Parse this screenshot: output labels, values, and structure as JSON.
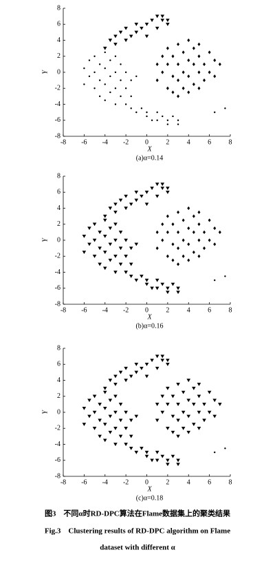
{
  "chart_data": [
    {
      "type": "scatter",
      "caption": "(a)α=0.14",
      "xlabel": "X",
      "ylabel": "Y",
      "xlim": [
        -8,
        8
      ],
      "xticks": [
        -8,
        -6,
        -4,
        -2,
        0,
        2,
        4,
        6,
        8
      ],
      "ylim": [
        -8,
        8
      ],
      "yticks": [
        -8,
        -6,
        -4,
        -2,
        0,
        2,
        4,
        6,
        8
      ],
      "series": [
        {
          "marker": "dot",
          "color": "#000000",
          "x": [
            -6,
            -6,
            -5.5,
            -5.5,
            -5,
            -5,
            -5,
            -4.5,
            -4.5,
            -4.5,
            -4,
            -4,
            -4,
            -4,
            -3.5,
            -3.5,
            -3.5,
            -3,
            -3,
            -3,
            -3,
            -2.5,
            -2.5,
            -2.5,
            -2,
            -2,
            -2,
            -1.5,
            -1.5,
            -1
          ],
          "y": [
            0.5,
            -1.5,
            1.5,
            -0.5,
            2,
            0,
            -2,
            1,
            -1,
            -3,
            2.5,
            0.5,
            -1.5,
            -3.5,
            1.5,
            -0.5,
            -2.5,
            2,
            0,
            -2,
            -4,
            1,
            -1,
            -3,
            0,
            -2,
            -4,
            -1,
            -3,
            -0.5
          ]
        },
        {
          "marker": "triangle",
          "color": "#000000",
          "x": [
            -4,
            -3.5,
            -3,
            -3,
            -2.5,
            -2,
            -2,
            -1.5,
            -1,
            -1,
            -0.5,
            0,
            0,
            0.5,
            1,
            1,
            1.5,
            1.5,
            2,
            2
          ],
          "y": [
            3,
            4,
            3.5,
            4.5,
            5,
            4,
            5.5,
            4.5,
            5,
            6,
            5.5,
            6,
            4.5,
            6.5,
            7,
            5.5,
            6.5,
            7,
            6,
            6.5
          ]
        },
        {
          "marker": "dot",
          "color": "#000000",
          "x": [
            -1.5,
            -1,
            -0.5,
            0,
            0,
            0.5,
            1,
            1,
            1.5,
            2,
            2,
            2.5,
            3,
            3
          ],
          "y": [
            -4.5,
            -5,
            -4.5,
            -5,
            -5.5,
            -6,
            -5,
            -6,
            -5.5,
            -6,
            -6.5,
            -5.5,
            -6.5,
            -6
          ]
        },
        {
          "marker": "diamond",
          "color": "#000000",
          "x": [
            1,
            1,
            1.5,
            1.5,
            2,
            2,
            2,
            2.5,
            2.5,
            2.5,
            3,
            3,
            3,
            3,
            3.5,
            3.5,
            3.5,
            4,
            4,
            4,
            4,
            4.5,
            4.5,
            4.5,
            5,
            5,
            5,
            5,
            5.5,
            5.5,
            6,
            6,
            6.5,
            6.5,
            7
          ],
          "y": [
            1,
            -1,
            2,
            0,
            3,
            1,
            -2,
            2,
            -0.5,
            -2.5,
            3.5,
            1,
            -1,
            -3,
            2.5,
            0,
            -2,
            4,
            1.5,
            -0.5,
            -2.5,
            3,
            1,
            -1.5,
            3.5,
            2,
            0,
            -2,
            1,
            -1,
            2.5,
            0,
            1.5,
            -0.5,
            1
          ]
        },
        {
          "marker": "dot",
          "color": "#000000",
          "x": [
            6.5,
            7.5
          ],
          "y": [
            -5,
            -4.5
          ]
        }
      ]
    },
    {
      "type": "scatter",
      "caption": "(b)α=0.16",
      "xlabel": "X",
      "ylabel": "Y",
      "xlim": [
        -8,
        8
      ],
      "xticks": [
        -8,
        -6,
        -4,
        -2,
        0,
        2,
        4,
        6,
        8
      ],
      "ylim": [
        -8,
        8
      ],
      "yticks": [
        -8,
        -6,
        -4,
        -2,
        0,
        2,
        4,
        6,
        8
      ],
      "series": [
        {
          "marker": "triangle",
          "color": "#000000",
          "x": [
            -6,
            -6,
            -5.5,
            -5.5,
            -5,
            -5,
            -5,
            -4.5,
            -4.5,
            -4.5,
            -4,
            -4,
            -4,
            -4,
            -3.5,
            -3.5,
            -3.5,
            -3,
            -3,
            -3,
            -3,
            -2.5,
            -2.5,
            -2.5,
            -2,
            -2,
            -2,
            -1.5,
            -1.5,
            -1
          ],
          "y": [
            0.5,
            -1.5,
            1.5,
            -0.5,
            2,
            0,
            -2,
            1,
            -1,
            -3,
            2.5,
            0.5,
            -1.5,
            -3.5,
            1.5,
            -0.5,
            -2.5,
            2,
            0,
            -2,
            -4,
            1,
            -1,
            -3,
            0,
            -2,
            -4,
            -1,
            -3,
            -0.5
          ]
        },
        {
          "marker": "triangle",
          "color": "#000000",
          "x": [
            -4,
            -3.5,
            -3,
            -3,
            -2.5,
            -2,
            -2,
            -1.5,
            -1,
            -1,
            -0.5,
            0,
            0,
            0.5,
            1,
            1,
            1.5,
            1.5,
            2,
            2
          ],
          "y": [
            3,
            4,
            3.5,
            4.5,
            5,
            4,
            5.5,
            4.5,
            5,
            6,
            5.5,
            6,
            4.5,
            6.5,
            7,
            5.5,
            6.5,
            7,
            6,
            6.5
          ]
        },
        {
          "marker": "triangle",
          "color": "#000000",
          "x": [
            -1.5,
            -1,
            -0.5,
            0,
            0,
            0.5,
            1,
            1,
            1.5,
            2,
            2,
            2.5,
            3,
            3
          ],
          "y": [
            -4.5,
            -5,
            -4.5,
            -5,
            -5.5,
            -6,
            -5,
            -6,
            -5.5,
            -6,
            -6.5,
            -5.5,
            -6.5,
            -6
          ]
        },
        {
          "marker": "diamond",
          "color": "#000000",
          "x": [
            1,
            1,
            1.5,
            1.5,
            2,
            2,
            2,
            2.5,
            2.5,
            2.5,
            3,
            3,
            3,
            3,
            3.5,
            3.5,
            3.5,
            4,
            4,
            4,
            4,
            4.5,
            4.5,
            4.5,
            5,
            5,
            5,
            5,
            5.5,
            5.5,
            6,
            6,
            6.5,
            6.5,
            7
          ],
          "y": [
            1,
            -1,
            2,
            0,
            3,
            1,
            -2,
            2,
            -0.5,
            -2.5,
            3.5,
            1,
            -1,
            -3,
            2.5,
            0,
            -2,
            4,
            1.5,
            -0.5,
            -2.5,
            3,
            1,
            -1.5,
            3.5,
            2,
            0,
            -2,
            1,
            -1,
            2.5,
            0,
            1.5,
            -0.5,
            1
          ]
        },
        {
          "marker": "dot",
          "color": "#000000",
          "x": [
            6.5,
            7.5
          ],
          "y": [
            -5,
            -4.5
          ]
        }
      ]
    },
    {
      "type": "scatter",
      "caption": "(c)α=0.18",
      "xlabel": "X",
      "ylabel": "Y",
      "xlim": [
        -8,
        8
      ],
      "xticks": [
        -8,
        -6,
        -4,
        -2,
        0,
        2,
        4,
        6,
        8
      ],
      "ylim": [
        -8,
        8
      ],
      "yticks": [
        -8,
        -6,
        -4,
        -2,
        0,
        2,
        4,
        6,
        8
      ],
      "series": [
        {
          "marker": "triangle",
          "color": "#000000",
          "x": [
            -6,
            -6,
            -5.5,
            -5.5,
            -5,
            -5,
            -5,
            -4.5,
            -4.5,
            -4.5,
            -4,
            -4,
            -4,
            -4,
            -3.5,
            -3.5,
            -3.5,
            -3,
            -3,
            -3,
            -3,
            -2.5,
            -2.5,
            -2.5,
            -2,
            -2,
            -2,
            -1.5,
            -1.5,
            -1
          ],
          "y": [
            0.5,
            -1.5,
            1.5,
            -0.5,
            2,
            0,
            -2,
            1,
            -1,
            -3,
            2.5,
            0.5,
            -1.5,
            -3.5,
            1.5,
            -0.5,
            -2.5,
            2,
            0,
            -2,
            -4,
            1,
            -1,
            -3,
            0,
            -2,
            -4,
            -1,
            -3,
            -0.5
          ]
        },
        {
          "marker": "triangle",
          "color": "#000000",
          "x": [
            -4,
            -3.5,
            -3,
            -3,
            -2.5,
            -2,
            -2,
            -1.5,
            -1,
            -1,
            -0.5,
            0,
            0,
            0.5,
            1,
            1,
            1.5,
            1.5,
            2,
            2
          ],
          "y": [
            3,
            4,
            3.5,
            4.5,
            5,
            4,
            5.5,
            4.5,
            5,
            6,
            5.5,
            6,
            4.5,
            6.5,
            7,
            5.5,
            6.5,
            7,
            6,
            6.5
          ]
        },
        {
          "marker": "triangle",
          "color": "#000000",
          "x": [
            -1.5,
            -1,
            -0.5,
            0,
            0,
            0.5,
            1,
            1,
            1.5,
            2,
            2,
            2.5,
            3,
            3
          ],
          "y": [
            -4.5,
            -5,
            -4.5,
            -5,
            -5.5,
            -6,
            -5,
            -6,
            -5.5,
            -6,
            -6.5,
            -5.5,
            -6.5,
            -6
          ]
        },
        {
          "marker": "triangle",
          "color": "#000000",
          "x": [
            1,
            1,
            1.5,
            1.5,
            2,
            2,
            2,
            2.5,
            2.5,
            2.5,
            3,
            3,
            3,
            3,
            3.5,
            3.5,
            3.5,
            4,
            4,
            4,
            4,
            4.5,
            4.5,
            4.5,
            5,
            5,
            5,
            5,
            5.5,
            5.5,
            6,
            6,
            6.5,
            6.5,
            7
          ],
          "y": [
            1,
            -1,
            2,
            0,
            3,
            1,
            -2,
            2,
            -0.5,
            -2.5,
            3.5,
            1,
            -1,
            -3,
            2.5,
            0,
            -2,
            4,
            1.5,
            -0.5,
            -2.5,
            3,
            1,
            -1.5,
            3.5,
            2,
            0,
            -2,
            1,
            -1,
            2.5,
            0,
            1.5,
            -0.5,
            1
          ]
        },
        {
          "marker": "dot",
          "color": "#000000",
          "x": [
            6.5,
            7.5
          ],
          "y": [
            -5,
            -4.5
          ]
        }
      ]
    }
  ],
  "figure_caption": {
    "zh": "图3　不同α时RD-DPC算法在Flame数据集上的聚类结果",
    "en_line1": "Fig.3　Clustering results of RD-DPC algorithm on Flame",
    "en_line2": "dataset with different α"
  }
}
